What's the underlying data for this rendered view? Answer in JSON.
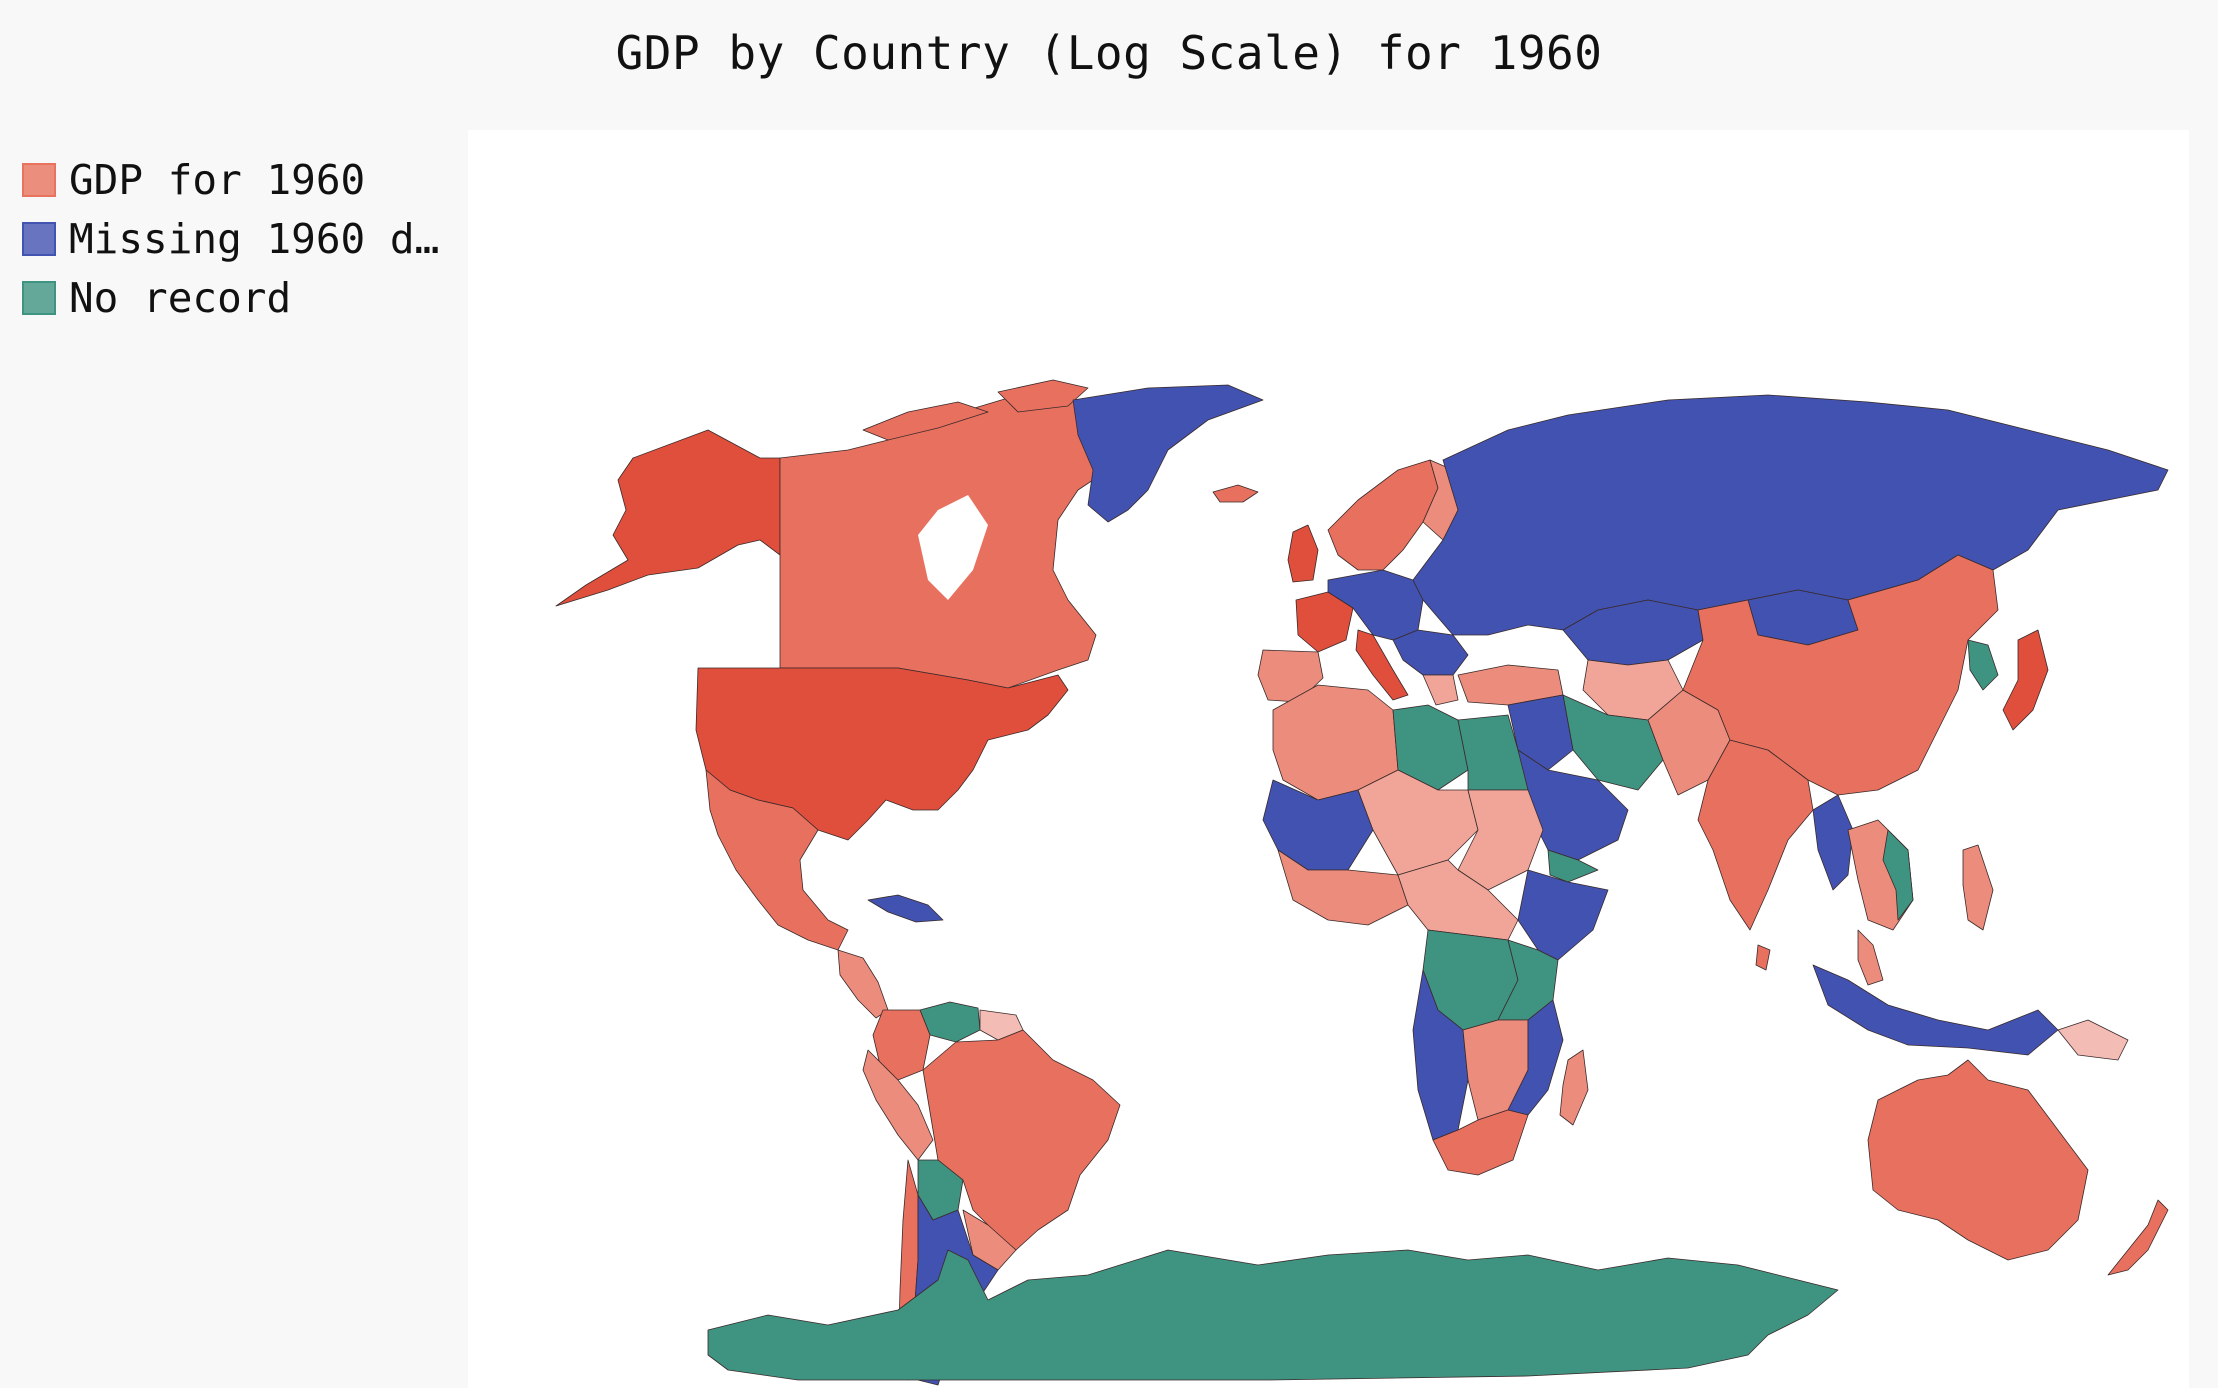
{
  "title": "GDP by Country (Log Scale) for 1960",
  "legend": [
    {
      "label": "GDP for 1960",
      "color": "#e8735f"
    },
    {
      "label": "Missing 1960 d…",
      "color": "#4353b0"
    },
    {
      "label": "No record",
      "color": "#3f9381"
    }
  ],
  "colors": {
    "gdp_high": "#e04e3c",
    "gdp_upper": "#e8705f",
    "gdp_mid": "#ec8c7c",
    "gdp_low": "#f0a598",
    "gdp_lowest": "#f3bdb5",
    "missing": "#4152b0",
    "no_record": "#3f9381"
  },
  "chart_data": {
    "type": "choropleth",
    "title": "GDP by Country (Log Scale) for 1960",
    "scale": "log",
    "categories": [
      "GDP for 1960",
      "Missing 1960 d…",
      "No record"
    ],
    "regions": {
      "gdp": [
        "United States",
        "Canada",
        "Mexico",
        "Brazil",
        "Colombia",
        "Peru",
        "Ecuador",
        "Chile",
        "Uruguay",
        "Paraguay",
        "Guyana",
        "Suriname",
        "China",
        "India",
        "Japan",
        "Australia",
        "New Zealand",
        "United Kingdom",
        "France",
        "Spain",
        "Portugal",
        "Italy",
        "Sweden",
        "Norway",
        "Finland",
        "Turkey",
        "Pakistan",
        "Afghanistan",
        "Thailand",
        "Philippines",
        "Malaysia",
        "Papua New Guinea",
        "South Africa",
        "Madagascar",
        "Algeria",
        "Morocco",
        "Mali",
        "Niger",
        "Chad",
        "Sudan",
        "Nigeria",
        "Kenya",
        "Zambia",
        "Botswana",
        "Zimbabwe",
        "Iceland",
        "South Korea",
        "Sri Lanka"
      ],
      "missing": [
        "Greenland",
        "Russia",
        "Kazakhstan",
        "Poland",
        "Germany",
        "Argentina",
        "Saudi Arabia",
        "Ethiopia",
        "Somalia",
        "Mauritania",
        "Angola",
        "Namibia",
        "Mozambique",
        "Tanzania",
        "Indonesia",
        "Myanmar",
        "Mongolia",
        "Cuba",
        "Iraq",
        "Ukraine",
        "Belarus"
      ],
      "no_record": [
        "Antarctica",
        "Libya",
        "Egypt",
        "Iran",
        "Venezuela",
        "Bolivia",
        "DR Congo",
        "Uganda",
        "North Korea",
        "Vietnam",
        "Yemen",
        "Western Sahara",
        "Taiwan"
      ]
    }
  }
}
